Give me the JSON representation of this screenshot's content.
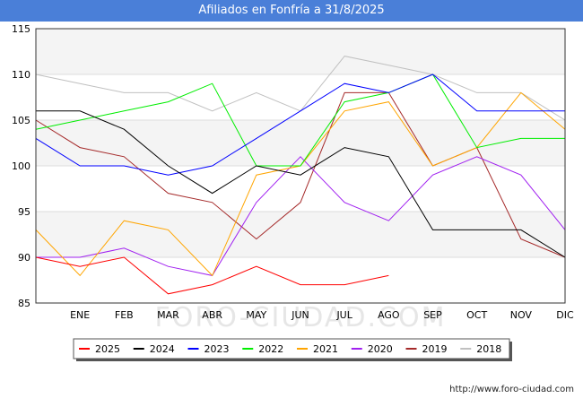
{
  "title": "Afiliados en Fonfría a 31/8/2025",
  "footer_url": "http://www.foro-ciudad.com",
  "watermark": "FORO-CIUDAD.COM",
  "chart_data": {
    "type": "line",
    "title": "Afiliados en Fonfría a 31/8/2025",
    "xlabel": "",
    "ylabel": "",
    "x": [
      "",
      "ENE",
      "FEB",
      "MAR",
      "ABR",
      "MAY",
      "JUN",
      "JUL",
      "AGO",
      "SEP",
      "OCT",
      "NOV",
      "DIC"
    ],
    "ylim": [
      85,
      115
    ],
    "yticks": [
      85,
      90,
      95,
      100,
      105,
      110,
      115
    ],
    "grid": true,
    "legend_position": "bottom",
    "series": [
      {
        "name": "2025",
        "color": "#ff0000",
        "values": [
          90,
          89,
          90,
          86,
          87,
          89,
          87,
          87,
          88,
          null,
          null,
          null,
          null
        ]
      },
      {
        "name": "2024",
        "color": "#000000",
        "values": [
          106,
          106,
          104,
          100,
          97,
          100,
          99,
          102,
          101,
          93,
          93,
          93,
          90
        ]
      },
      {
        "name": "2023",
        "color": "#0000ff",
        "values": [
          103,
          100,
          100,
          99,
          100,
          103,
          106,
          109,
          108,
          110,
          106,
          106,
          106
        ]
      },
      {
        "name": "2022",
        "color": "#00ee00",
        "values": [
          104,
          105,
          106,
          107,
          109,
          100,
          100,
          107,
          108,
          110,
          102,
          103,
          103
        ]
      },
      {
        "name": "2021",
        "color": "#ffa500",
        "values": [
          93,
          88,
          94,
          93,
          88,
          99,
          100,
          106,
          107,
          100,
          102,
          108,
          104
        ]
      },
      {
        "name": "2020",
        "color": "#a020f0",
        "values": [
          90,
          90,
          91,
          89,
          88,
          96,
          101,
          96,
          94,
          99,
          101,
          99,
          93
        ]
      },
      {
        "name": "2019",
        "color": "#a52a2a",
        "values": [
          105,
          102,
          101,
          97,
          96,
          92,
          96,
          108,
          108,
          100,
          102,
          92,
          90
        ]
      },
      {
        "name": "2018",
        "color": "#c0c0c0",
        "values": [
          110,
          109,
          108,
          108,
          106,
          108,
          106,
          112,
          111,
          110,
          108,
          108,
          105
        ]
      }
    ]
  }
}
